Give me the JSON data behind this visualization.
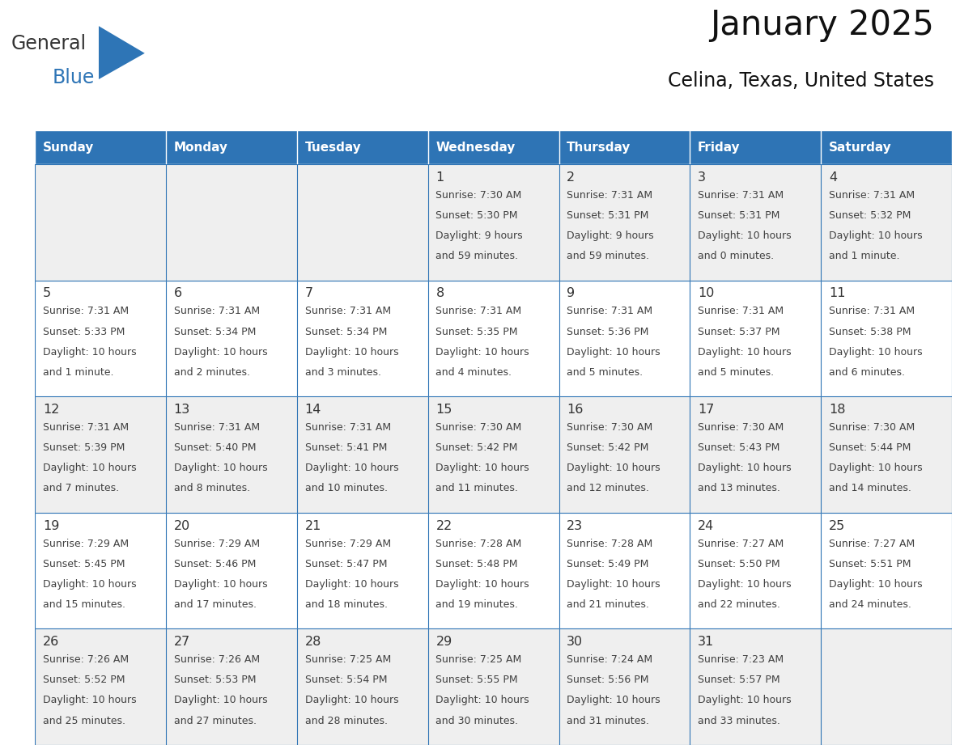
{
  "title": "January 2025",
  "subtitle": "Celina, Texas, United States",
  "days_of_week": [
    "Sunday",
    "Monday",
    "Tuesday",
    "Wednesday",
    "Thursday",
    "Friday",
    "Saturday"
  ],
  "header_bg": "#2E74B5",
  "header_text_color": "#FFFFFF",
  "row_bg_odd": "#EFEFEF",
  "row_bg_even": "#FFFFFF",
  "cell_text_color": "#404040",
  "day_num_color": "#333333",
  "border_color": "#2E74B5",
  "cell_border_color": "#AAAAAA",
  "logo_general_color": "#333333",
  "logo_blue_color": "#2E75B6",
  "logo_triangle_color": "#2E75B6",
  "calendar_data": [
    [
      {
        "day": "",
        "sunrise": "",
        "sunset": "",
        "daylight": ""
      },
      {
        "day": "",
        "sunrise": "",
        "sunset": "",
        "daylight": ""
      },
      {
        "day": "",
        "sunrise": "",
        "sunset": "",
        "daylight": ""
      },
      {
        "day": "1",
        "sunrise": "7:30 AM",
        "sunset": "5:30 PM",
        "daylight": "9 hours\nand 59 minutes."
      },
      {
        "day": "2",
        "sunrise": "7:31 AM",
        "sunset": "5:31 PM",
        "daylight": "9 hours\nand 59 minutes."
      },
      {
        "day": "3",
        "sunrise": "7:31 AM",
        "sunset": "5:31 PM",
        "daylight": "10 hours\nand 0 minutes."
      },
      {
        "day": "4",
        "sunrise": "7:31 AM",
        "sunset": "5:32 PM",
        "daylight": "10 hours\nand 1 minute."
      }
    ],
    [
      {
        "day": "5",
        "sunrise": "7:31 AM",
        "sunset": "5:33 PM",
        "daylight": "10 hours\nand 1 minute."
      },
      {
        "day": "6",
        "sunrise": "7:31 AM",
        "sunset": "5:34 PM",
        "daylight": "10 hours\nand 2 minutes."
      },
      {
        "day": "7",
        "sunrise": "7:31 AM",
        "sunset": "5:34 PM",
        "daylight": "10 hours\nand 3 minutes."
      },
      {
        "day": "8",
        "sunrise": "7:31 AM",
        "sunset": "5:35 PM",
        "daylight": "10 hours\nand 4 minutes."
      },
      {
        "day": "9",
        "sunrise": "7:31 AM",
        "sunset": "5:36 PM",
        "daylight": "10 hours\nand 5 minutes."
      },
      {
        "day": "10",
        "sunrise": "7:31 AM",
        "sunset": "5:37 PM",
        "daylight": "10 hours\nand 5 minutes."
      },
      {
        "day": "11",
        "sunrise": "7:31 AM",
        "sunset": "5:38 PM",
        "daylight": "10 hours\nand 6 minutes."
      }
    ],
    [
      {
        "day": "12",
        "sunrise": "7:31 AM",
        "sunset": "5:39 PM",
        "daylight": "10 hours\nand 7 minutes."
      },
      {
        "day": "13",
        "sunrise": "7:31 AM",
        "sunset": "5:40 PM",
        "daylight": "10 hours\nand 8 minutes."
      },
      {
        "day": "14",
        "sunrise": "7:31 AM",
        "sunset": "5:41 PM",
        "daylight": "10 hours\nand 10 minutes."
      },
      {
        "day": "15",
        "sunrise": "7:30 AM",
        "sunset": "5:42 PM",
        "daylight": "10 hours\nand 11 minutes."
      },
      {
        "day": "16",
        "sunrise": "7:30 AM",
        "sunset": "5:42 PM",
        "daylight": "10 hours\nand 12 minutes."
      },
      {
        "day": "17",
        "sunrise": "7:30 AM",
        "sunset": "5:43 PM",
        "daylight": "10 hours\nand 13 minutes."
      },
      {
        "day": "18",
        "sunrise": "7:30 AM",
        "sunset": "5:44 PM",
        "daylight": "10 hours\nand 14 minutes."
      }
    ],
    [
      {
        "day": "19",
        "sunrise": "7:29 AM",
        "sunset": "5:45 PM",
        "daylight": "10 hours\nand 15 minutes."
      },
      {
        "day": "20",
        "sunrise": "7:29 AM",
        "sunset": "5:46 PM",
        "daylight": "10 hours\nand 17 minutes."
      },
      {
        "day": "21",
        "sunrise": "7:29 AM",
        "sunset": "5:47 PM",
        "daylight": "10 hours\nand 18 minutes."
      },
      {
        "day": "22",
        "sunrise": "7:28 AM",
        "sunset": "5:48 PM",
        "daylight": "10 hours\nand 19 minutes."
      },
      {
        "day": "23",
        "sunrise": "7:28 AM",
        "sunset": "5:49 PM",
        "daylight": "10 hours\nand 21 minutes."
      },
      {
        "day": "24",
        "sunrise": "7:27 AM",
        "sunset": "5:50 PM",
        "daylight": "10 hours\nand 22 minutes."
      },
      {
        "day": "25",
        "sunrise": "7:27 AM",
        "sunset": "5:51 PM",
        "daylight": "10 hours\nand 24 minutes."
      }
    ],
    [
      {
        "day": "26",
        "sunrise": "7:26 AM",
        "sunset": "5:52 PM",
        "daylight": "10 hours\nand 25 minutes."
      },
      {
        "day": "27",
        "sunrise": "7:26 AM",
        "sunset": "5:53 PM",
        "daylight": "10 hours\nand 27 minutes."
      },
      {
        "day": "28",
        "sunrise": "7:25 AM",
        "sunset": "5:54 PM",
        "daylight": "10 hours\nand 28 minutes."
      },
      {
        "day": "29",
        "sunrise": "7:25 AM",
        "sunset": "5:55 PM",
        "daylight": "10 hours\nand 30 minutes."
      },
      {
        "day": "30",
        "sunrise": "7:24 AM",
        "sunset": "5:56 PM",
        "daylight": "10 hours\nand 31 minutes."
      },
      {
        "day": "31",
        "sunrise": "7:23 AM",
        "sunset": "5:57 PM",
        "daylight": "10 hours\nand 33 minutes."
      },
      {
        "day": "",
        "sunrise": "",
        "sunset": "",
        "daylight": ""
      }
    ]
  ]
}
